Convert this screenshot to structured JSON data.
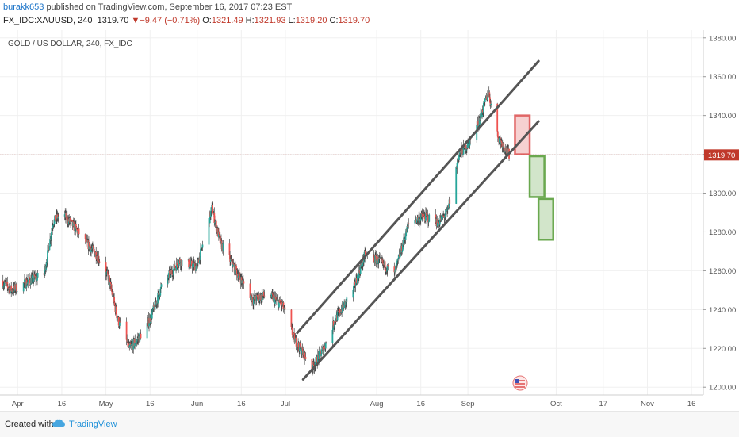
{
  "header": {
    "author": "burakk653",
    "published": "published on TradingView.com, September 16, 2017 07:23 EST",
    "symbol": "FX_IDC:XAUUSD, 240",
    "last": "1319.70",
    "change": "▼−9.47 (−0.71%)",
    "o_label": "O:",
    "o_value": "1321.49",
    "h_label": "H:",
    "h_value": "1321.93",
    "l_label": "L:",
    "l_value": "1319.20",
    "c_label": "C:",
    "c_value": "1319.70"
  },
  "footer": {
    "created_with": "Created with",
    "brand": "TradingView"
  },
  "colors": {
    "bull": "#26a69a",
    "bear": "#ef5350",
    "wick": "#444444",
    "price_line": "#c0392b",
    "price_tag_bg": "#c0392b",
    "sell_zone": "#e06666",
    "buy_zone": "#6aa84f",
    "channel": "#555555"
  },
  "chart_data": {
    "type": "candlestick",
    "title": "GOLD / US DOLLAR, 240, FX_IDC",
    "xlabel": "",
    "ylabel": "",
    "ylim": [
      1196,
      1384
    ],
    "y_ticks": [
      1200,
      1220,
      1240,
      1260,
      1280,
      1300,
      1320,
      1340,
      1360,
      1380
    ],
    "y_tick_labels": [
      "1200.00",
      "1220.00",
      "1240.00",
      "1260.00",
      "1280.00",
      "1300.00",
      "1320.00",
      "1340.00",
      "1360.00",
      "1380.00"
    ],
    "x_range": [
      "2017-03-26",
      "2017-11-20"
    ],
    "x_ticks": [
      {
        "date": "2017-04-01",
        "label": "Apr"
      },
      {
        "date": "2017-04-16",
        "label": "16"
      },
      {
        "date": "2017-05-01",
        "label": "May"
      },
      {
        "date": "2017-05-16",
        "label": "16"
      },
      {
        "date": "2017-06-01",
        "label": "Jun"
      },
      {
        "date": "2017-06-16",
        "label": "16"
      },
      {
        "date": "2017-07-01",
        "label": "Jul"
      },
      {
        "date": "2017-08-01",
        "label": "Aug"
      },
      {
        "date": "2017-08-16",
        "label": "16"
      },
      {
        "date": "2017-09-01",
        "label": "Sep"
      },
      {
        "date": "2017-10-01",
        "label": "Oct"
      },
      {
        "date": "2017-10-17",
        "label": "17"
      },
      {
        "date": "2017-11-01",
        "label": "Nov"
      },
      {
        "date": "2017-11-16",
        "label": "16"
      }
    ],
    "price_path": [
      [
        "2017-03-26",
        1255
      ],
      [
        "2017-03-30",
        1250
      ],
      [
        "2017-04-05",
        1255
      ],
      [
        "2017-04-10",
        1258
      ],
      [
        "2017-04-13",
        1285
      ],
      [
        "2017-04-16",
        1290
      ],
      [
        "2017-04-20",
        1283
      ],
      [
        "2017-04-24",
        1275
      ],
      [
        "2017-04-28",
        1268
      ],
      [
        "2017-05-02",
        1256
      ],
      [
        "2017-05-05",
        1235
      ],
      [
        "2017-05-09",
        1220
      ],
      [
        "2017-05-12",
        1225
      ],
      [
        "2017-05-16",
        1235
      ],
      [
        "2017-05-20",
        1252
      ],
      [
        "2017-05-26",
        1265
      ],
      [
        "2017-06-01",
        1262
      ],
      [
        "2017-06-06",
        1292
      ],
      [
        "2017-06-09",
        1274
      ],
      [
        "2017-06-15",
        1258
      ],
      [
        "2017-06-20",
        1245
      ],
      [
        "2017-06-25",
        1248
      ],
      [
        "2017-06-30",
        1242
      ],
      [
        "2017-07-04",
        1225
      ],
      [
        "2017-07-10",
        1210
      ],
      [
        "2017-07-14",
        1220
      ],
      [
        "2017-07-18",
        1235
      ],
      [
        "2017-07-24",
        1250
      ],
      [
        "2017-07-28",
        1268
      ],
      [
        "2017-08-02",
        1265
      ],
      [
        "2017-08-07",
        1258
      ],
      [
        "2017-08-12",
        1285
      ],
      [
        "2017-08-17",
        1288
      ],
      [
        "2017-08-22",
        1285
      ],
      [
        "2017-08-25",
        1290
      ],
      [
        "2017-08-29",
        1320
      ],
      [
        "2017-09-01",
        1325
      ],
      [
        "2017-09-05",
        1338
      ],
      [
        "2017-09-08",
        1352
      ],
      [
        "2017-09-11",
        1330
      ],
      [
        "2017-09-14",
        1322
      ],
      [
        "2017-09-15",
        1320
      ]
    ],
    "current_price": 1319.7,
    "current_price_label": "1319.70",
    "channel_lines": [
      {
        "from": [
          "2017-07-05",
          1228
        ],
        "to": [
          "2017-09-25",
          1368
        ]
      },
      {
        "from": [
          "2017-07-07",
          1204
        ],
        "to": [
          "2017-09-25",
          1337
        ]
      }
    ],
    "zones": [
      {
        "kind": "sell",
        "from": [
          "2017-09-17",
          1340
        ],
        "to": [
          "2017-09-22",
          1320
        ]
      },
      {
        "kind": "buy",
        "from": [
          "2017-09-22",
          1319
        ],
        "to": [
          "2017-09-27",
          1298
        ]
      },
      {
        "kind": "buy",
        "from": [
          "2017-09-25",
          1297
        ],
        "to": [
          "2017-09-30",
          1276
        ]
      }
    ]
  }
}
